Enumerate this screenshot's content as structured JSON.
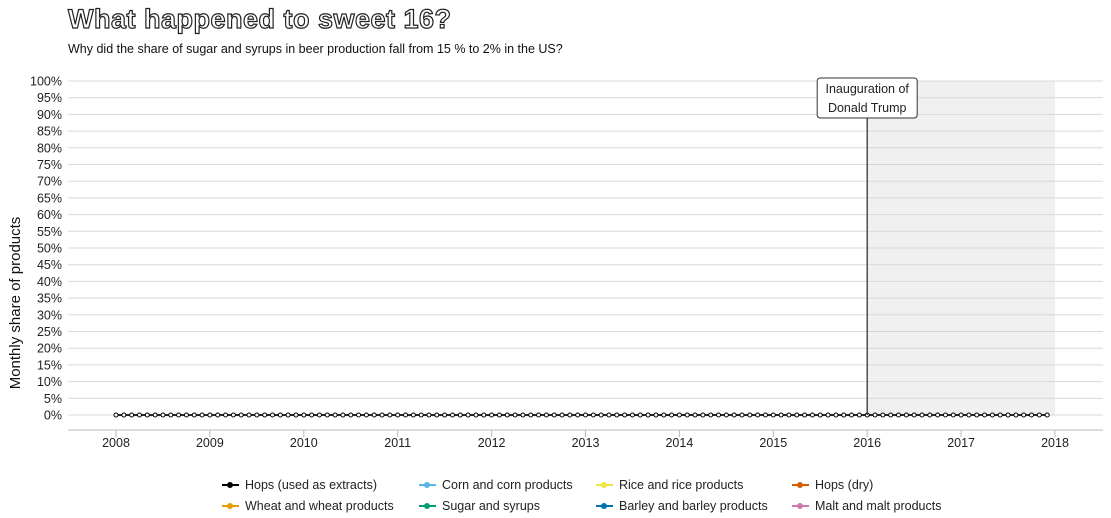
{
  "header": {
    "title": "What happened to sweet 16?",
    "subtitle": "Why did the share of sugar and syrups in beer production fall from 15 % to 2% in the US?"
  },
  "annotation": {
    "line1": "Inauguration of",
    "line2": "Donald Trump",
    "date": 2016.0
  },
  "chart_data": {
    "type": "line",
    "title": "What happened to sweet 16?",
    "subtitle": "Why did the share of sugar and syrups in beer production fall from 15 % to 2% in the US?",
    "xlabel": "",
    "ylabel": "Monthly share of products",
    "x_ticks": [
      "2008",
      "2009",
      "2010",
      "2011",
      "2012",
      "2013",
      "2014",
      "2015",
      "2016",
      "2017",
      "2018"
    ],
    "y_ticks": [
      "0%",
      "5%",
      "10%",
      "15%",
      "20%",
      "25%",
      "30%",
      "35%",
      "40%",
      "45%",
      "50%",
      "55%",
      "60%",
      "65%",
      "70%",
      "75%",
      "80%",
      "85%",
      "90%",
      "95%",
      "100%"
    ],
    "xlim": [
      2008,
      2018
    ],
    "ylim": [
      0,
      100
    ],
    "grid": true,
    "shaded_region": [
      2016.0,
      2018.0
    ],
    "x_start": "2008-01",
    "x_end": "2017-12",
    "frequency": "monthly",
    "legend_position": "bottom",
    "series": [
      {
        "name": "Hops (used as extracts)",
        "color": "#000000",
        "value": 0
      },
      {
        "name": "Corn and corn products",
        "color": "#56B4E9",
        "value": 0
      },
      {
        "name": "Rice and rice products",
        "color": "#F0E442",
        "value": 0
      },
      {
        "name": "Hops (dry)",
        "color": "#D55E00",
        "value": 0
      },
      {
        "name": "Wheat and wheat products",
        "color": "#E69F00",
        "value": 0
      },
      {
        "name": "Sugar and syrups",
        "color": "#009E73",
        "value": 0
      },
      {
        "name": "Barley and barley products",
        "color": "#0072B2",
        "value": 0
      },
      {
        "name": "Malt and malt products",
        "color": "#CC79A7",
        "value": 0
      }
    ]
  }
}
